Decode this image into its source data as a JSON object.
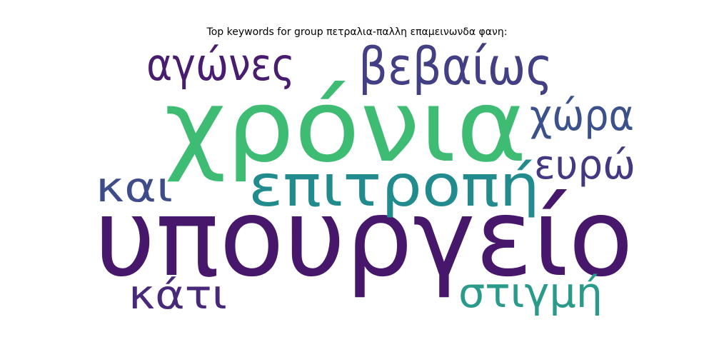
{
  "chart_data": {
    "type": "wordcloud",
    "title": "Top keywords for group πετραλια-παλλη επαμεινωνδα φανη:",
    "words": [
      {
        "text": "υπουργείο",
        "weight": 1.0,
        "color": "#46176a"
      },
      {
        "text": "χρόνια",
        "weight": 0.9,
        "color": "#3fbc73"
      },
      {
        "text": "επιτροπή",
        "weight": 0.55,
        "color": "#228b8d"
      },
      {
        "text": "βεβαίως",
        "weight": 0.42,
        "color": "#433f85"
      },
      {
        "text": "αγώνες",
        "weight": 0.38,
        "color": "#481c6e"
      },
      {
        "text": "χώρα",
        "weight": 0.36,
        "color": "#3b518b"
      },
      {
        "text": "και",
        "weight": 0.33,
        "color": "#3e4c8a"
      },
      {
        "text": "ευρώ",
        "weight": 0.32,
        "color": "#453781"
      },
      {
        "text": "κάτι",
        "weight": 0.32,
        "color": "#482878"
      },
      {
        "text": "στιγμή",
        "weight": 0.32,
        "color": "#2a9a8b"
      }
    ]
  }
}
